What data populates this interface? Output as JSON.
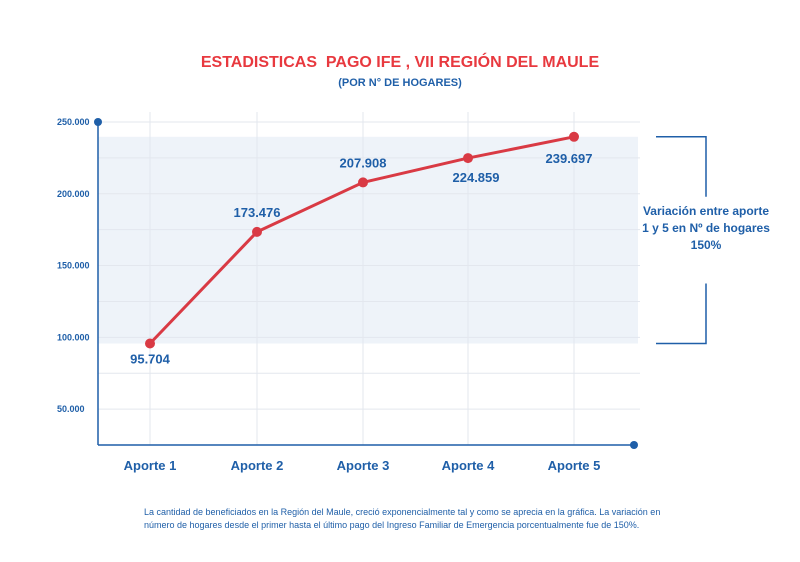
{
  "colors": {
    "title": "#e8393f",
    "accent": "#1f5fa8",
    "line": "#d93a44",
    "band": "#eef3f9",
    "grid": "#e3e7ee"
  },
  "chart_data": {
    "type": "line",
    "title": "ESTADISTICAS  PAGO IFE , VII REGIÓN DEL MAULE",
    "subtitle": "(POR N° DE HOGARES)",
    "categories": [
      "Aporte 1",
      "Aporte 2",
      "Aporte 3",
      "Aporte 4",
      "Aporte 5"
    ],
    "series": [
      {
        "values": [
          95704,
          173476,
          207908,
          224859,
          239697
        ]
      }
    ],
    "data_labels": [
      "95.704",
      "173.476",
      "207.908",
      "224.859",
      "239.697"
    ],
    "y_ticks": [
      {
        "value": 50000,
        "label": "50.000"
      },
      {
        "value": 100000,
        "label": "100.000"
      },
      {
        "value": 150000,
        "label": "150.000"
      },
      {
        "value": 200000,
        "label": "200.000"
      },
      {
        "value": 250000,
        "label": "250.000"
      }
    ],
    "ylim": [
      25000,
      250000
    ],
    "grid": true,
    "highlight_band": [
      95704,
      239697
    ],
    "annotation": [
      "Variación entre aporte",
      "1 y 5 en Nº de hogares",
      "150%"
    ]
  },
  "footnote": [
    "La cantidad de beneficiados en la Región del Maule, creció exponencialmente tal y como se aprecia en la gráfica. La variación en",
    "número de hogares desde el primer hasta el último pago del Ingreso Familiar de Emergencia porcentualmente fue de 150%."
  ]
}
